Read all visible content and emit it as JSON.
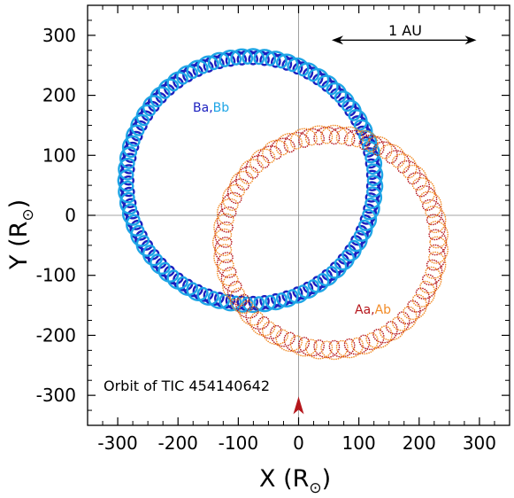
{
  "chart_data": {
    "type": "line",
    "xlabel": "X (R",
    "ylabel": "Y (R",
    "axis_unit_symbol": "⊙",
    "xlim": [
      -350,
      350
    ],
    "ylim": [
      -350,
      350
    ],
    "xticks": [
      -300,
      -200,
      -100,
      0,
      100,
      200,
      300
    ],
    "yticks": [
      -300,
      -200,
      -100,
      0,
      100,
      200,
      300
    ],
    "zero_lines": true,
    "annotations": {
      "scale_bar_label": "1 AU",
      "scale_bar_x": [
        55,
        295
      ],
      "scale_bar_y": 292,
      "title_text": "Orbit of TIC 454140642",
      "label_B1": "Ba",
      "label_B_sep": ",",
      "label_B2": "Bb",
      "label_A1": "Aa",
      "label_A_sep": ",",
      "label_A2": "Ab",
      "marker_x": 0,
      "marker_y": -318
    },
    "series": [
      {
        "key": "Ba",
        "center": [
          -80,
          58
        ],
        "outer_radius": 205,
        "epicycle_radius": 11,
        "loops": 68,
        "color": "#1a1fbf",
        "style": "solid",
        "phase": 0.0
      },
      {
        "key": "Bb",
        "center": [
          -80,
          58
        ],
        "outer_radius": 207,
        "epicycle_radius": 12,
        "loops": 68,
        "color": "#1ea5e6",
        "style": "solid",
        "phase": 3.14159
      },
      {
        "key": "Aa",
        "center": [
          53,
          -45
        ],
        "outer_radius": 178,
        "epicycle_radius": 14,
        "loops": 44,
        "color": "#b5161b",
        "style": "dotted",
        "phase": 0.0
      },
      {
        "key": "Ab",
        "center": [
          53,
          -45
        ],
        "outer_radius": 180,
        "epicycle_radius": 15,
        "loops": 44,
        "color": "#f28c28",
        "style": "dotted",
        "phase": 3.14159
      }
    ],
    "colors": {
      "axis": "#000000",
      "zero_line": "#888888",
      "marker": "#b5161b",
      "label_B1": "#1a1fbf",
      "label_B2": "#1ea5e6",
      "label_A1": "#b5161b",
      "label_A2": "#f28c28"
    }
  }
}
